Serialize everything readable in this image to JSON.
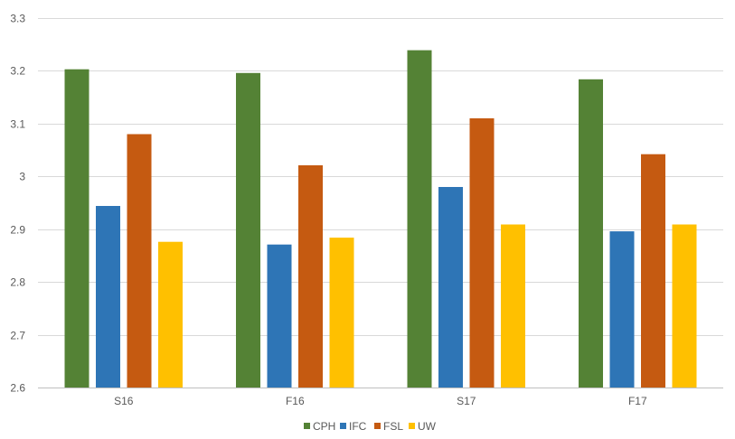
{
  "chart_data": {
    "type": "bar",
    "title": "",
    "xlabel": "",
    "ylabel": "",
    "categories": [
      "S16",
      "F16",
      "S17",
      "F17"
    ],
    "series": [
      {
        "name": "CPH",
        "color": "#548235",
        "values": [
          3.203,
          3.196,
          3.239,
          3.184
        ]
      },
      {
        "name": "IFC",
        "color": "#2E75B6",
        "values": [
          2.944,
          2.871,
          2.98,
          2.896
        ]
      },
      {
        "name": "FSL",
        "color": "#C55A11",
        "values": [
          3.08,
          3.021,
          3.11,
          3.042
        ]
      },
      {
        "name": "UW",
        "color": "#FFC000",
        "values": [
          2.876,
          2.884,
          2.909,
          2.909
        ]
      }
    ],
    "ylim": [
      2.6,
      3.3
    ],
    "yticks": [
      2.6,
      2.7,
      2.8,
      2.9,
      3,
      3.1,
      3.2,
      3.3
    ],
    "ytick_labels": [
      "2.6",
      "2.7",
      "2.8",
      "2.9",
      "3",
      "3.1",
      "3.2",
      "3.3"
    ],
    "grid": true,
    "legend_position": "bottom"
  }
}
